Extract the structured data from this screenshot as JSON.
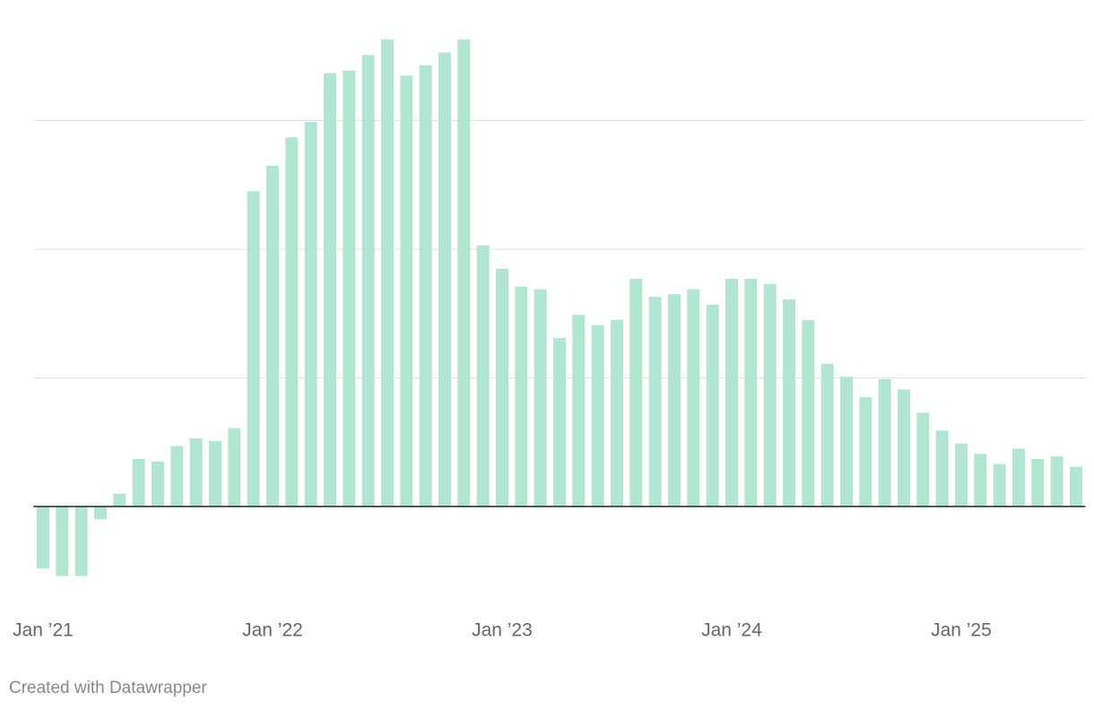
{
  "chart_data": {
    "type": "bar",
    "categories": [
      "Jan ’21",
      null,
      null,
      null,
      null,
      null,
      null,
      null,
      null,
      null,
      null,
      null,
      "Jan ’22",
      null,
      null,
      null,
      null,
      null,
      null,
      null,
      null,
      null,
      null,
      null,
      "Jan ’23",
      null,
      null,
      null,
      null,
      null,
      null,
      null,
      null,
      null,
      null,
      null,
      "Jan ’24",
      null,
      null,
      null,
      null,
      null,
      null,
      null,
      null,
      null,
      null,
      null,
      "Jan ’25",
      null,
      null,
      null,
      null,
      null,
      null
    ],
    "values": [
      -0.48,
      -0.54,
      -0.54,
      -0.1,
      0.1,
      0.37,
      0.35,
      0.47,
      0.53,
      0.51,
      0.61,
      2.45,
      2.65,
      2.87,
      2.99,
      3.37,
      3.39,
      3.51,
      3.63,
      3.35,
      3.43,
      3.53,
      3.63,
      2.03,
      1.85,
      1.71,
      1.69,
      1.31,
      1.49,
      1.41,
      1.45,
      1.77,
      1.63,
      1.65,
      1.69,
      1.57,
      1.77,
      1.77,
      1.73,
      1.61,
      1.45,
      1.11,
      1.01,
      0.85,
      0.99,
      0.91,
      0.73,
      0.59,
      0.49,
      0.41,
      0.33,
      0.45,
      0.37,
      0.39,
      0.31
    ],
    "color": "#b3e6d2",
    "ylim": [
      -0.7,
      3.7
    ],
    "yticks": [
      0,
      1,
      2,
      3
    ],
    "grid": true,
    "credit": "Created with Datawrapper"
  }
}
